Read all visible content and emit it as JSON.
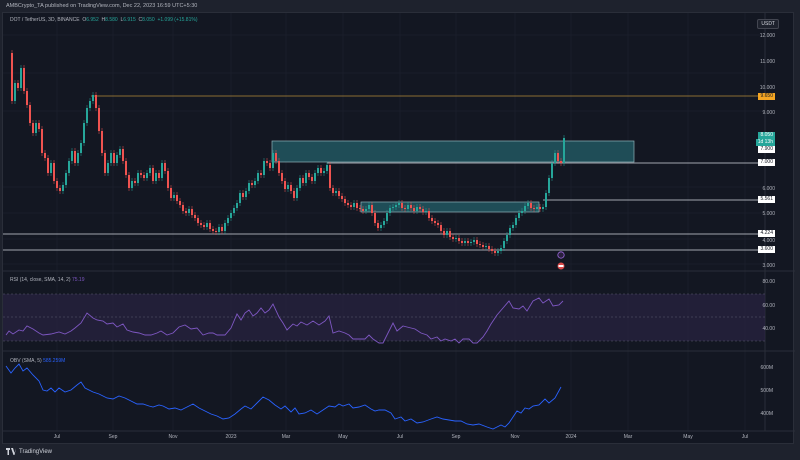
{
  "publish_line": "AMBCrypto_TA published on TradingView.com, Dec 22, 2023 16:59 UTC+5:30",
  "symbol_legend": {
    "title": "DOT / TetherUS, 3D, BINANCE",
    "open_label": "O",
    "open": "6.952",
    "high_label": "H",
    "high": "8.580",
    "low_label": "L",
    "low": "6.915",
    "close_label": "C",
    "close": "8.050",
    "change": "+1.099 (+15.81%)"
  },
  "currency_button": "USDT",
  "price_axis": [
    "12.000",
    "11.000",
    "10.000",
    "9.000",
    "6.000",
    "5.000",
    "4.000",
    "3.000"
  ],
  "price_tags": {
    "orange_level": "9.650",
    "current_price": "8.050",
    "countdown": "1d 13h",
    "level_7900": "7.900",
    "level_7000": "7.000",
    "level_5561": "5.561",
    "level_4224": "4.224",
    "level_3600": "3.600"
  },
  "rsi": {
    "legend": "RSI (14, close, SMA, 14, 2)",
    "value": "75.19",
    "axis": [
      "80.00",
      "60.00",
      "40.00"
    ]
  },
  "obv": {
    "legend": "OBV (SMA, 5)",
    "value": "585.259M",
    "axis": [
      "600M",
      "500M",
      "400M"
    ]
  },
  "time_axis": [
    "Jul",
    "Sep",
    "Nov",
    "2023",
    "Mar",
    "May",
    "Jul",
    "Sep",
    "Nov",
    "2024",
    "Mar",
    "May",
    "Jul"
  ],
  "footer": {
    "brand": "TradingView",
    "logo": "tradingview-logo-icon"
  },
  "colors": {
    "bull": "#26a69a",
    "bear": "#ef5350",
    "rsi_line": "#7e57c2",
    "obv_line": "#2962ff",
    "zone_fill": "#1f4d57",
    "level_orange": "#f5a623"
  }
}
